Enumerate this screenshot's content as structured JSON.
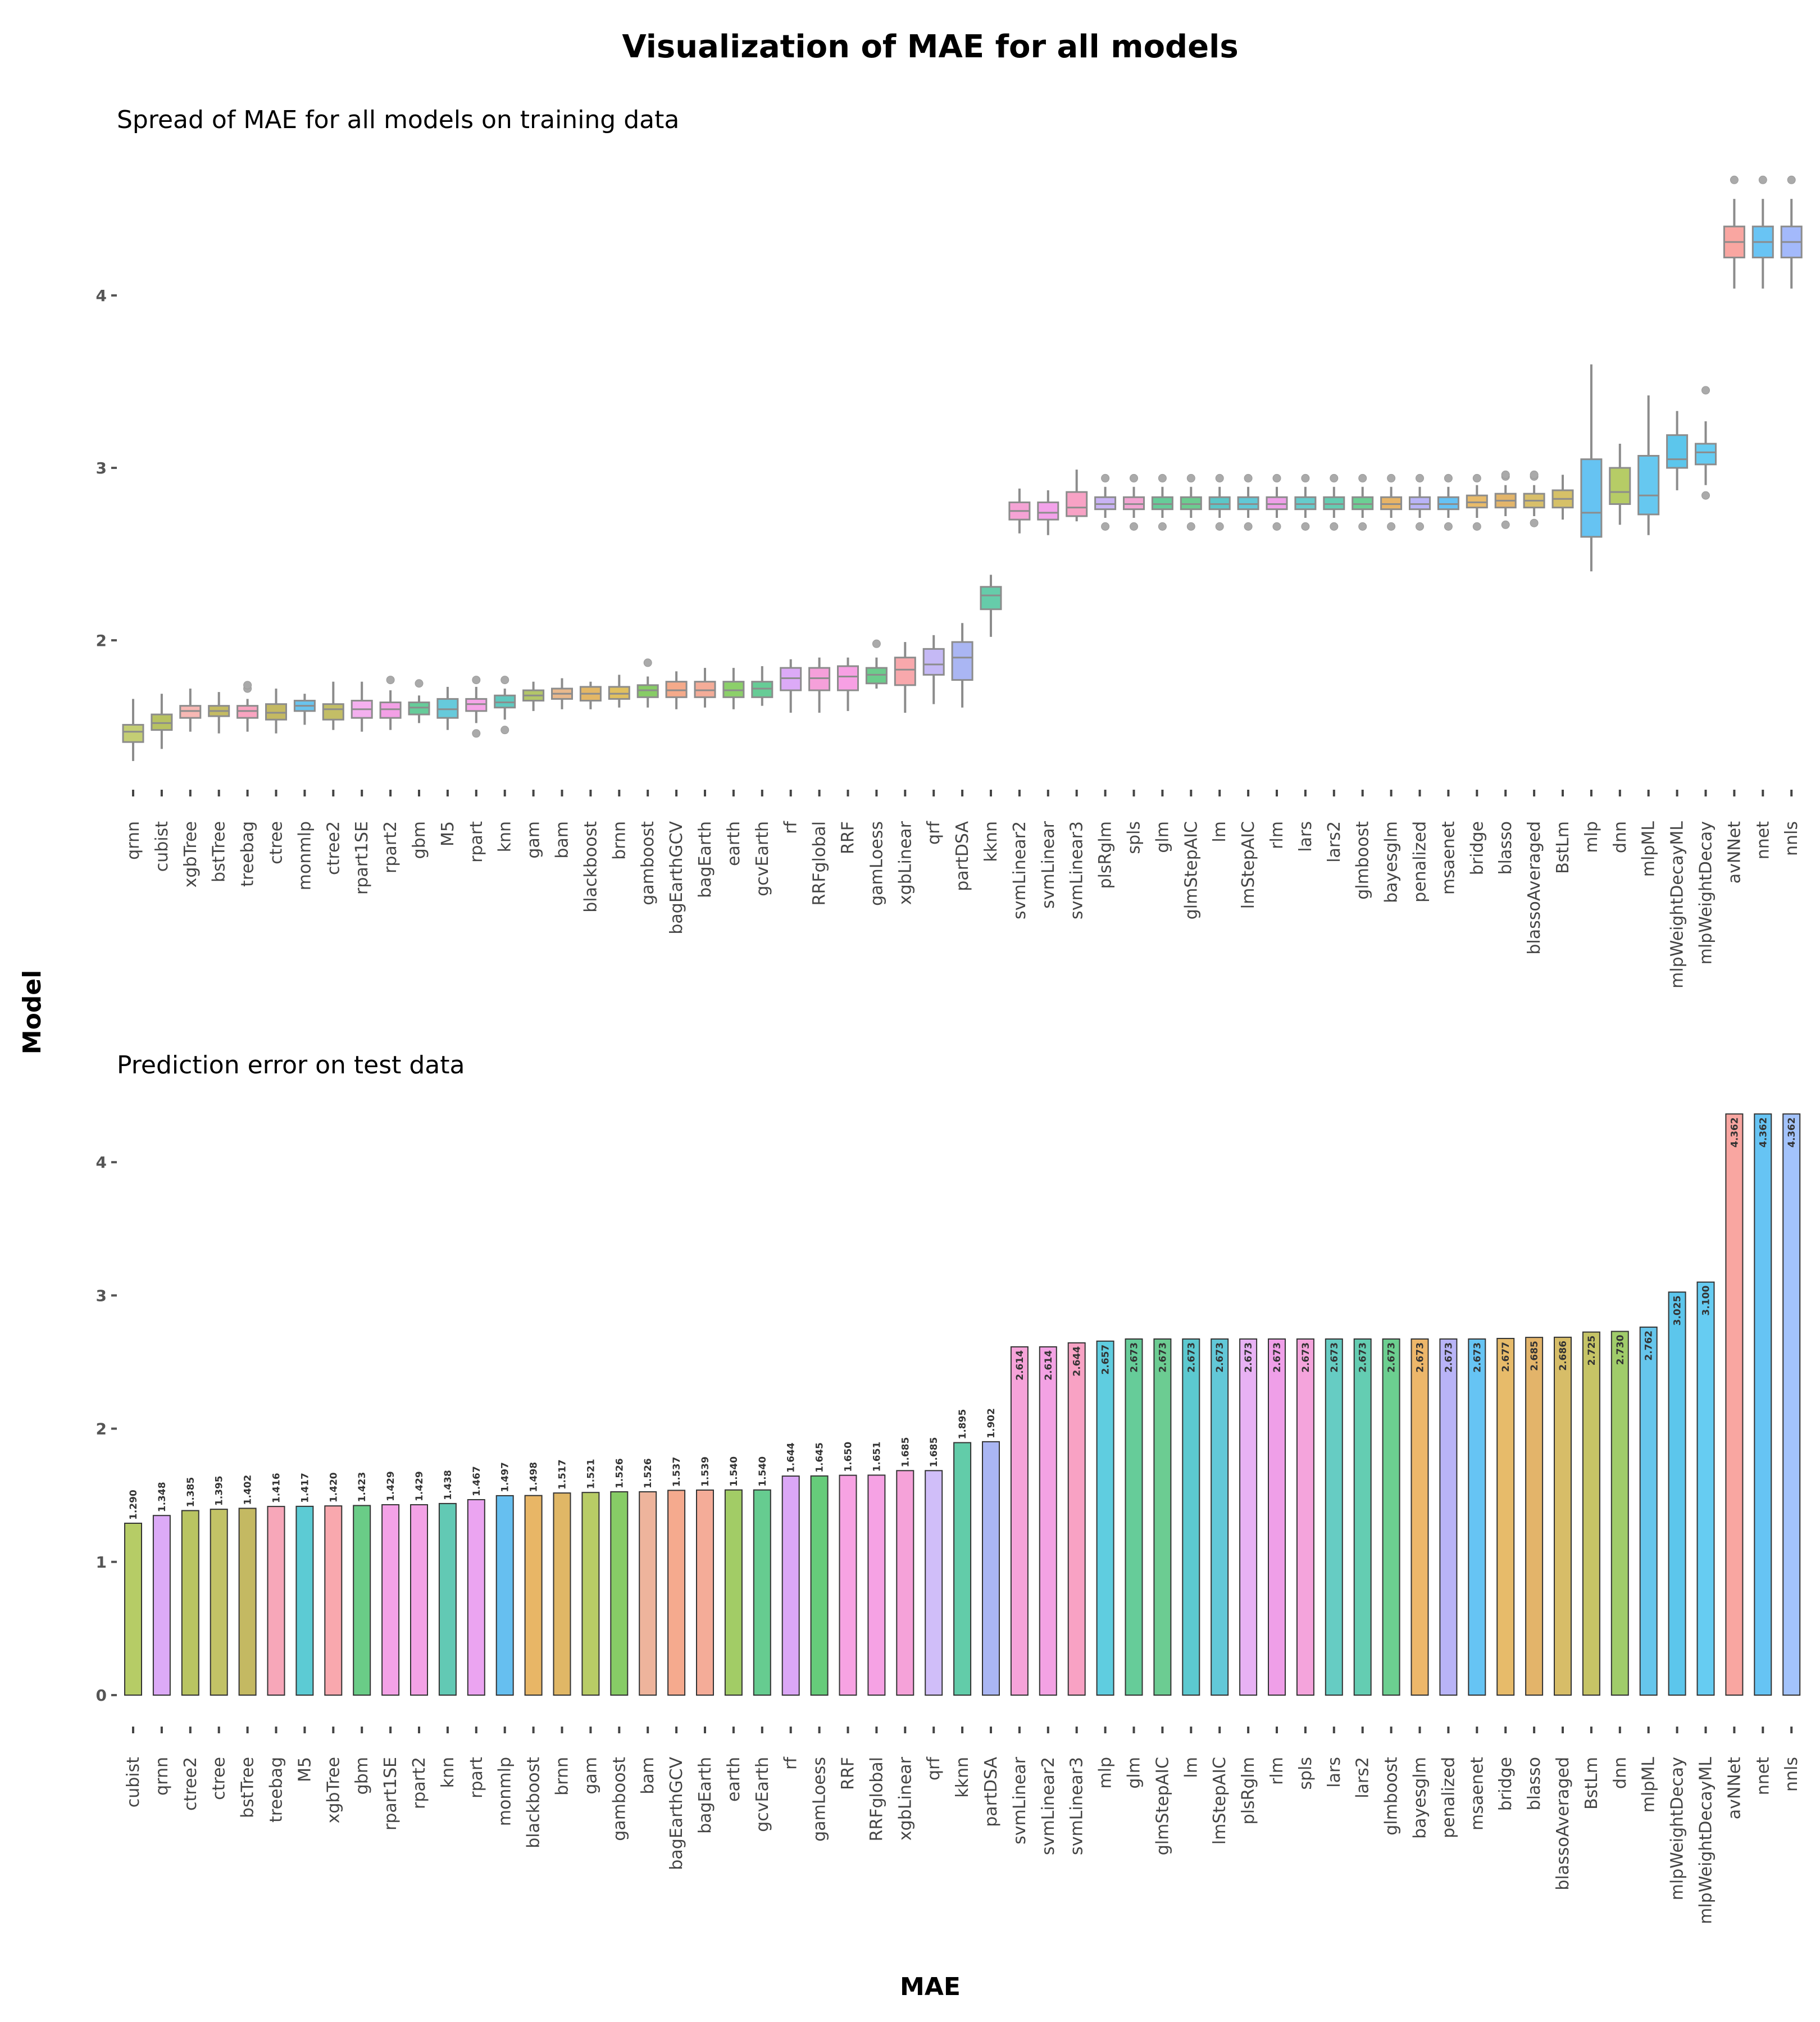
{
  "figure": {
    "title": "Visualization of MAE for all models",
    "ylabel": "Model",
    "xlabel": "MAE"
  },
  "chart_data": [
    {
      "type": "box",
      "title": "Spread of MAE for all models on training data",
      "ylim": [
        1.2,
        4.8
      ],
      "yticks": [
        2,
        3,
        4
      ],
      "grid": false,
      "legend": "none",
      "categories": [
        "qrnn",
        "cubist",
        "xgbTree",
        "bstTree",
        "treebag",
        "ctree",
        "monmlp",
        "ctree2",
        "rpart1SE",
        "rpart2",
        "gbm",
        "M5",
        "rpart",
        "knn",
        "gam",
        "bam",
        "blackboost",
        "brnn",
        "gamboost",
        "bagEarthGCV",
        "bagEarth",
        "earth",
        "gcvEarth",
        "rf",
        "RRFglobal",
        "RRF",
        "gamLoess",
        "xgbLinear",
        "qrf",
        "partDSA",
        "kknn",
        "svmLinear2",
        "svmLinear",
        "svmLinear3",
        "plsRglm",
        "spls",
        "glm",
        "glmStepAIC",
        "lm",
        "lmStepAIC",
        "rlm",
        "lars",
        "lars2",
        "glmboost",
        "bayesglm",
        "penalized",
        "msaenet",
        "bridge",
        "blasso",
        "blassoAveraged",
        "BstLm",
        "mlp",
        "dnn",
        "mlpML",
        "mlpWeightDecayML",
        "mlpWeightDecay",
        "avNNet",
        "nnet",
        "nnls"
      ],
      "boxes": [
        {
          "min": 1.3,
          "q1": 1.41,
          "median": 1.47,
          "q3": 1.51,
          "max": 1.66,
          "outliers": []
        },
        {
          "min": 1.37,
          "q1": 1.48,
          "median": 1.52,
          "q3": 1.57,
          "max": 1.69,
          "outliers": []
        },
        {
          "min": 1.47,
          "q1": 1.55,
          "median": 1.59,
          "q3": 1.62,
          "max": 1.72,
          "outliers": []
        },
        {
          "min": 1.46,
          "q1": 1.56,
          "median": 1.59,
          "q3": 1.62,
          "max": 1.7,
          "outliers": []
        },
        {
          "min": 1.47,
          "q1": 1.55,
          "median": 1.59,
          "q3": 1.62,
          "max": 1.66,
          "outliers": [
            1.72,
            1.74
          ]
        },
        {
          "min": 1.46,
          "q1": 1.54,
          "median": 1.58,
          "q3": 1.63,
          "max": 1.72,
          "outliers": []
        },
        {
          "min": 1.51,
          "q1": 1.59,
          "median": 1.62,
          "q3": 1.65,
          "max": 1.69,
          "outliers": []
        },
        {
          "min": 1.48,
          "q1": 1.54,
          "median": 1.6,
          "q3": 1.63,
          "max": 1.76,
          "outliers": []
        },
        {
          "min": 1.47,
          "q1": 1.55,
          "median": 1.6,
          "q3": 1.65,
          "max": 1.76,
          "outliers": []
        },
        {
          "min": 1.48,
          "q1": 1.55,
          "median": 1.6,
          "q3": 1.64,
          "max": 1.71,
          "outliers": [
            1.77
          ]
        },
        {
          "min": 1.52,
          "q1": 1.57,
          "median": 1.61,
          "q3": 1.64,
          "max": 1.68,
          "outliers": [
            1.75
          ]
        },
        {
          "min": 1.48,
          "q1": 1.55,
          "median": 1.6,
          "q3": 1.66,
          "max": 1.73,
          "outliers": []
        },
        {
          "min": 1.52,
          "q1": 1.59,
          "median": 1.63,
          "q3": 1.66,
          "max": 1.73,
          "outliers": [
            1.46,
            1.77
          ]
        },
        {
          "min": 1.54,
          "q1": 1.61,
          "median": 1.64,
          "q3": 1.68,
          "max": 1.72,
          "outliers": [
            1.48,
            1.77
          ]
        },
        {
          "min": 1.59,
          "q1": 1.65,
          "median": 1.68,
          "q3": 1.71,
          "max": 1.76,
          "outliers": []
        },
        {
          "min": 1.6,
          "q1": 1.66,
          "median": 1.69,
          "q3": 1.72,
          "max": 1.78,
          "outliers": []
        },
        {
          "min": 1.6,
          "q1": 1.65,
          "median": 1.69,
          "q3": 1.73,
          "max": 1.76,
          "outliers": []
        },
        {
          "min": 1.61,
          "q1": 1.66,
          "median": 1.69,
          "q3": 1.73,
          "max": 1.8,
          "outliers": []
        },
        {
          "min": 1.61,
          "q1": 1.67,
          "median": 1.71,
          "q3": 1.74,
          "max": 1.79,
          "outliers": [
            1.87
          ]
        },
        {
          "min": 1.6,
          "q1": 1.67,
          "median": 1.71,
          "q3": 1.76,
          "max": 1.82,
          "outliers": []
        },
        {
          "min": 1.61,
          "q1": 1.67,
          "median": 1.71,
          "q3": 1.76,
          "max": 1.84,
          "outliers": []
        },
        {
          "min": 1.6,
          "q1": 1.67,
          "median": 1.71,
          "q3": 1.76,
          "max": 1.84,
          "outliers": []
        },
        {
          "min": 1.62,
          "q1": 1.67,
          "median": 1.72,
          "q3": 1.76,
          "max": 1.85,
          "outliers": []
        },
        {
          "min": 1.58,
          "q1": 1.71,
          "median": 1.78,
          "q3": 1.84,
          "max": 1.89,
          "outliers": []
        },
        {
          "min": 1.58,
          "q1": 1.71,
          "median": 1.78,
          "q3": 1.84,
          "max": 1.9,
          "outliers": []
        },
        {
          "min": 1.59,
          "q1": 1.71,
          "median": 1.79,
          "q3": 1.85,
          "max": 1.9,
          "outliers": []
        },
        {
          "min": 1.72,
          "q1": 1.75,
          "median": 1.8,
          "q3": 1.84,
          "max": 1.9,
          "outliers": [
            1.98
          ]
        },
        {
          "min": 1.58,
          "q1": 1.74,
          "median": 1.83,
          "q3": 1.9,
          "max": 1.99,
          "outliers": []
        },
        {
          "min": 1.63,
          "q1": 1.8,
          "median": 1.86,
          "q3": 1.95,
          "max": 2.03,
          "outliers": []
        },
        {
          "min": 1.61,
          "q1": 1.77,
          "median": 1.9,
          "q3": 1.99,
          "max": 2.1,
          "outliers": []
        },
        {
          "min": 2.02,
          "q1": 2.18,
          "median": 2.26,
          "q3": 2.31,
          "max": 2.38,
          "outliers": []
        },
        {
          "min": 2.62,
          "q1": 2.7,
          "median": 2.75,
          "q3": 2.8,
          "max": 2.88,
          "outliers": []
        },
        {
          "min": 2.61,
          "q1": 2.7,
          "median": 2.74,
          "q3": 2.8,
          "max": 2.87,
          "outliers": []
        },
        {
          "min": 2.69,
          "q1": 2.72,
          "median": 2.77,
          "q3": 2.86,
          "max": 2.99,
          "outliers": []
        },
        {
          "min": 2.71,
          "q1": 2.76,
          "median": 2.79,
          "q3": 2.83,
          "max": 2.89,
          "outliers": [
            2.66,
            2.94
          ]
        },
        {
          "min": 2.71,
          "q1": 2.76,
          "median": 2.79,
          "q3": 2.83,
          "max": 2.89,
          "outliers": [
            2.66,
            2.94
          ]
        },
        {
          "min": 2.71,
          "q1": 2.76,
          "median": 2.79,
          "q3": 2.83,
          "max": 2.89,
          "outliers": [
            2.66,
            2.94
          ]
        },
        {
          "min": 2.71,
          "q1": 2.76,
          "median": 2.79,
          "q3": 2.83,
          "max": 2.89,
          "outliers": [
            2.66,
            2.94
          ]
        },
        {
          "min": 2.71,
          "q1": 2.76,
          "median": 2.79,
          "q3": 2.83,
          "max": 2.89,
          "outliers": [
            2.66,
            2.94
          ]
        },
        {
          "min": 2.71,
          "q1": 2.76,
          "median": 2.79,
          "q3": 2.83,
          "max": 2.89,
          "outliers": [
            2.66,
            2.94
          ]
        },
        {
          "min": 2.71,
          "q1": 2.76,
          "median": 2.79,
          "q3": 2.83,
          "max": 2.89,
          "outliers": [
            2.66,
            2.94
          ]
        },
        {
          "min": 2.71,
          "q1": 2.76,
          "median": 2.79,
          "q3": 2.83,
          "max": 2.89,
          "outliers": [
            2.66,
            2.94
          ]
        },
        {
          "min": 2.71,
          "q1": 2.76,
          "median": 2.79,
          "q3": 2.83,
          "max": 2.89,
          "outliers": [
            2.66,
            2.94
          ]
        },
        {
          "min": 2.71,
          "q1": 2.76,
          "median": 2.79,
          "q3": 2.83,
          "max": 2.89,
          "outliers": [
            2.66,
            2.94
          ]
        },
        {
          "min": 2.71,
          "q1": 2.76,
          "median": 2.79,
          "q3": 2.83,
          "max": 2.89,
          "outliers": [
            2.66,
            2.94
          ]
        },
        {
          "min": 2.71,
          "q1": 2.76,
          "median": 2.79,
          "q3": 2.83,
          "max": 2.89,
          "outliers": [
            2.66,
            2.94
          ]
        },
        {
          "min": 2.71,
          "q1": 2.76,
          "median": 2.79,
          "q3": 2.83,
          "max": 2.89,
          "outliers": [
            2.66,
            2.94
          ]
        },
        {
          "min": 2.71,
          "q1": 2.77,
          "median": 2.8,
          "q3": 2.84,
          "max": 2.9,
          "outliers": [
            2.66,
            2.94
          ]
        },
        {
          "min": 2.72,
          "q1": 2.77,
          "median": 2.81,
          "q3": 2.85,
          "max": 2.9,
          "outliers": [
            2.67,
            2.95,
            2.96
          ]
        },
        {
          "min": 2.72,
          "q1": 2.77,
          "median": 2.81,
          "q3": 2.85,
          "max": 2.9,
          "outliers": [
            2.68,
            2.95,
            2.96
          ]
        },
        {
          "min": 2.7,
          "q1": 2.77,
          "median": 2.82,
          "q3": 2.87,
          "max": 2.96,
          "outliers": []
        },
        {
          "min": 2.4,
          "q1": 2.6,
          "median": 2.74,
          "q3": 3.05,
          "max": 3.6,
          "outliers": []
        },
        {
          "min": 2.67,
          "q1": 2.79,
          "median": 2.86,
          "q3": 3.0,
          "max": 3.14,
          "outliers": []
        },
        {
          "min": 2.61,
          "q1": 2.73,
          "median": 2.84,
          "q3": 3.07,
          "max": 3.42,
          "outliers": []
        },
        {
          "min": 2.87,
          "q1": 3.0,
          "median": 3.05,
          "q3": 3.19,
          "max": 3.33,
          "outliers": []
        },
        {
          "min": 2.9,
          "q1": 3.02,
          "median": 3.09,
          "q3": 3.14,
          "max": 3.27,
          "outliers": [
            2.84,
            3.45
          ]
        },
        {
          "min": 4.04,
          "q1": 4.22,
          "median": 4.31,
          "q3": 4.4,
          "max": 4.56,
          "outliers": [
            4.67
          ]
        },
        {
          "min": 4.04,
          "q1": 4.22,
          "median": 4.31,
          "q3": 4.4,
          "max": 4.56,
          "outliers": [
            4.67
          ]
        },
        {
          "min": 4.04,
          "q1": 4.22,
          "median": 4.31,
          "q3": 4.4,
          "max": 4.56,
          "outliers": [
            4.67
          ]
        }
      ],
      "colors": [
        "#c4ce74",
        "#b8c262",
        "#f7b8b4",
        "#c4bb62",
        "#f9a4c0",
        "#c4b962",
        "#6ac3ed",
        "#c3be66",
        "#f4b0ef",
        "#f3a0e6",
        "#66cc9a",
        "#66cadb",
        "#f6a5e8",
        "#60c8bf",
        "#b3c669",
        "#e9b98d",
        "#e3b766",
        "#e0c060",
        "#87cc66",
        "#f5aa8a",
        "#f4ac98",
        "#8cd06a",
        "#66cc96",
        "#dcaaf7",
        "#f5a0da",
        "#f7a0e4",
        "#6ccc8c",
        "#f8a8ac",
        "#c5b9f5",
        "#aab6f3",
        "#66ccaa",
        "#f5a3d5",
        "#f3a2ea",
        "#f8a2c5",
        "#c9b3f4",
        "#f2a4d2",
        "#66cc99",
        "#6ccc90",
        "#5cc7c8",
        "#62c8d6",
        "#ee9fe8",
        "#66cccc",
        "#64cdb2",
        "#6ccf94",
        "#e7b467",
        "#b9b4f7",
        "#66c2f4",
        "#e8bb6a",
        "#e3b56a",
        "#d8bf6a",
        "#d6c168",
        "#66c3f2",
        "#b6cc66",
        "#66c8f0",
        "#5cc6ec",
        "#66ccf2",
        "#f9a6a1",
        "#69c4f4",
        "#a3b9fb"
      ]
    },
    {
      "type": "bar",
      "title": "Prediction error on test data",
      "ylim": [
        0,
        4.362
      ],
      "yticks": [
        0,
        1,
        2,
        3,
        4
      ],
      "grid": false,
      "legend": "none",
      "categories": [
        "cubist",
        "qrnn",
        "ctree2",
        "ctree",
        "bstTree",
        "treebag",
        "M5",
        "xgbTree",
        "gbm",
        "rpart1SE",
        "rpart2",
        "knn",
        "rpart",
        "monmlp",
        "blackboost",
        "brnn",
        "gam",
        "gamboost",
        "bam",
        "bagEarthGCV",
        "bagEarth",
        "earth",
        "gcvEarth",
        "rf",
        "gamLoess",
        "RRF",
        "RRFglobal",
        "xgbLinear",
        "qrf",
        "kknn",
        "partDSA",
        "svmLinear",
        "svmLinear2",
        "svmLinear3",
        "mlp",
        "glm",
        "glmStepAIC",
        "lm",
        "lmStepAIC",
        "plsRglm",
        "rlm",
        "spls",
        "lars",
        "lars2",
        "glmboost",
        "bayesglm",
        "penalized",
        "msaenet",
        "bridge",
        "blasso",
        "blassoAveraged",
        "BstLm",
        "dnn",
        "mlpML",
        "mlpWeightDecay",
        "mlpWeightDecayML",
        "avNNet",
        "nnet",
        "nnls"
      ],
      "values": [
        1.29,
        1.348,
        1.385,
        1.395,
        1.402,
        1.416,
        1.417,
        1.42,
        1.423,
        1.429,
        1.429,
        1.438,
        1.467,
        1.497,
        1.498,
        1.517,
        1.521,
        1.526,
        1.526,
        1.537,
        1.539,
        1.54,
        1.54,
        1.644,
        1.645,
        1.65,
        1.651,
        1.685,
        1.685,
        1.895,
        1.902,
        2.614,
        2.614,
        2.644,
        2.657,
        2.673,
        2.673,
        2.673,
        2.673,
        2.673,
        2.673,
        2.673,
        2.673,
        2.673,
        2.673,
        2.673,
        2.673,
        2.673,
        2.677,
        2.685,
        2.686,
        2.725,
        2.73,
        2.762,
        3.025,
        3.1,
        4.362,
        4.362,
        4.362
      ],
      "labels": [
        "1.290",
        "1.348",
        "1.385",
        "1.395",
        "1.402",
        "1.416",
        "1.417",
        "1.420",
        "1.423",
        "1.429",
        "1.429",
        "1.438",
        "1.467",
        "1.497",
        "1.498",
        "1.517",
        "1.521",
        "1.526",
        "1.526",
        "1.537",
        "1.539",
        "1.540",
        "1.540",
        "1.644",
        "1.645",
        "1.650",
        "1.651",
        "1.685",
        "1.685",
        "1.895",
        "1.902",
        "2.614",
        "2.614",
        "2.644",
        "2.657",
        "2.673",
        "2.673",
        "2.673",
        "2.673",
        "2.673",
        "2.673",
        "2.673",
        "2.673",
        "2.673",
        "2.673",
        "2.673",
        "2.673",
        "2.673",
        "2.677",
        "2.685",
        "2.686",
        "2.725",
        "2.730",
        "2.762",
        "3.025",
        "3.100",
        "4.362",
        "4.362",
        "4.362"
      ],
      "colors": [
        "#b6cc66",
        "#dcaaf7",
        "#b9c462",
        "#c2c266",
        "#c4b962",
        "#f7a7b9",
        "#5ccbd4",
        "#f9a8ae",
        "#6acc87",
        "#f4a2e7",
        "#f3a2e6",
        "#62c9b4",
        "#eba4f1",
        "#66bff0",
        "#e8b666",
        "#e0b766",
        "#b8cc66",
        "#87cc66",
        "#eeb49c",
        "#f5aa8e",
        "#f4ac98",
        "#a2cc66",
        "#66cc90",
        "#dba7f6",
        "#66cc7a",
        "#f7a3e3",
        "#f6a2e4",
        "#f5a2d9",
        "#d0bef9",
        "#62cca9",
        "#aab6f3",
        "#f6a3d9",
        "#f3a2e4",
        "#f8a2c4",
        "#5fcde0",
        "#66cc99",
        "#6ccc92",
        "#5cc9d0",
        "#62c8d8",
        "#e8b2f4",
        "#ef9fe8",
        "#f4a4dc",
        "#66ccc3",
        "#64cdb2",
        "#6ccf90",
        "#edb76a",
        "#b9b4f7",
        "#66c4f4",
        "#e7bb6a",
        "#e3b46a",
        "#d7bd68",
        "#c6c466",
        "#a0cc6a",
        "#66c6ec",
        "#5cc6ec",
        "#66ccf2",
        "#f9a6a1",
        "#66c4f4",
        "#a3c3fb"
      ]
    }
  ]
}
